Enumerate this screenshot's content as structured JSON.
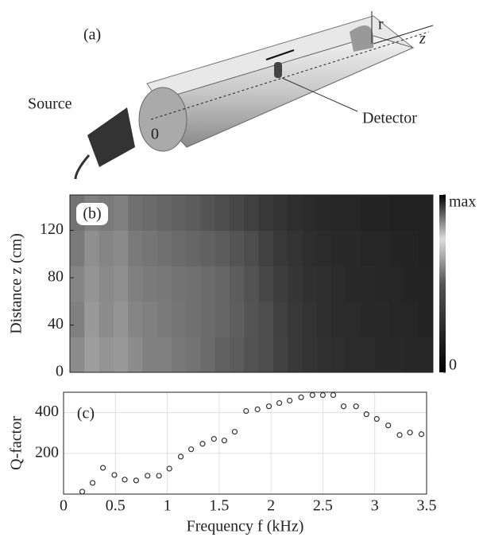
{
  "illustration": {
    "label": "(a)",
    "source": "Source",
    "detector": "Detector",
    "origin": "0",
    "radius": "r",
    "axis": "z"
  },
  "chart_data": [
    {
      "type": "heatmap",
      "title": "(b)",
      "ylabel": "Distance z (cm)",
      "xlim": [
        0,
        3.5
      ],
      "ylim": [
        0,
        150
      ],
      "yticks": [
        0,
        40,
        80,
        120
      ],
      "xbins": [
        0,
        0.14,
        0.28,
        0.42,
        0.56,
        0.7,
        0.84,
        0.98,
        1.12,
        1.26,
        1.4,
        1.54,
        1.68,
        1.82,
        1.96,
        2.1,
        2.24,
        2.38,
        2.52,
        2.66,
        2.8,
        2.94,
        3.08,
        3.22,
        3.36,
        3.5
      ],
      "ybins": [
        0,
        30,
        60,
        90,
        120,
        150
      ],
      "z": [
        [
          0.55,
          0.62,
          0.58,
          0.6,
          0.55,
          0.5,
          0.5,
          0.47,
          0.45,
          0.42,
          0.38,
          0.36,
          0.32,
          0.3,
          0.26,
          0.22,
          0.2,
          0.19,
          0.18,
          0.17,
          0.17,
          0.16,
          0.16,
          0.15,
          0.15
        ],
        [
          0.5,
          0.6,
          0.55,
          0.58,
          0.52,
          0.5,
          0.48,
          0.46,
          0.44,
          0.42,
          0.4,
          0.37,
          0.33,
          0.3,
          0.25,
          0.22,
          0.2,
          0.18,
          0.17,
          0.17,
          0.16,
          0.16,
          0.15,
          0.15,
          0.14
        ],
        [
          0.52,
          0.58,
          0.54,
          0.56,
          0.5,
          0.48,
          0.47,
          0.45,
          0.44,
          0.42,
          0.4,
          0.36,
          0.32,
          0.28,
          0.24,
          0.21,
          0.19,
          0.18,
          0.17,
          0.16,
          0.16,
          0.15,
          0.15,
          0.14,
          0.14
        ],
        [
          0.48,
          0.56,
          0.52,
          0.54,
          0.48,
          0.46,
          0.44,
          0.42,
          0.4,
          0.38,
          0.36,
          0.33,
          0.3,
          0.26,
          0.22,
          0.2,
          0.18,
          0.17,
          0.16,
          0.16,
          0.15,
          0.15,
          0.14,
          0.14,
          0.13
        ],
        [
          0.45,
          0.5,
          0.48,
          0.5,
          0.44,
          0.42,
          0.4,
          0.38,
          0.36,
          0.33,
          0.3,
          0.28,
          0.25,
          0.22,
          0.2,
          0.18,
          0.17,
          0.16,
          0.15,
          0.15,
          0.14,
          0.14,
          0.13,
          0.13,
          0.13
        ]
      ],
      "clim": [
        0,
        1
      ],
      "colorbar_ticks": [
        {
          "value": 1,
          "label": "max"
        },
        0
      ]
    },
    {
      "type": "scatter",
      "title": "(c)",
      "xlabel": "Frequency f (kHz)",
      "ylabel": "Q-factor",
      "xlim": [
        0,
        3.5
      ],
      "ylim": [
        0,
        500
      ],
      "xticks": [
        0,
        0.5,
        1,
        1.5,
        2,
        2.5,
        3,
        3.5
      ],
      "yticks": [
        200,
        400
      ],
      "grid": true,
      "x": [
        0.18,
        0.28,
        0.38,
        0.49,
        0.59,
        0.7,
        0.81,
        0.92,
        1.02,
        1.13,
        1.23,
        1.34,
        1.45,
        1.55,
        1.65,
        1.76,
        1.87,
        1.98,
        2.08,
        2.18,
        2.29,
        2.4,
        2.5,
        2.6,
        2.7,
        2.82,
        2.92,
        3.02,
        3.13,
        3.24,
        3.34,
        3.45
      ],
      "values": [
        12,
        55,
        129,
        94,
        71,
        67,
        90,
        90,
        125,
        184,
        220,
        247,
        271,
        263,
        306,
        408,
        416,
        431,
        447,
        459,
        475,
        486,
        486,
        486,
        431,
        431,
        392,
        369,
        337,
        290,
        302,
        294
      ],
      "color": "#333333"
    }
  ]
}
